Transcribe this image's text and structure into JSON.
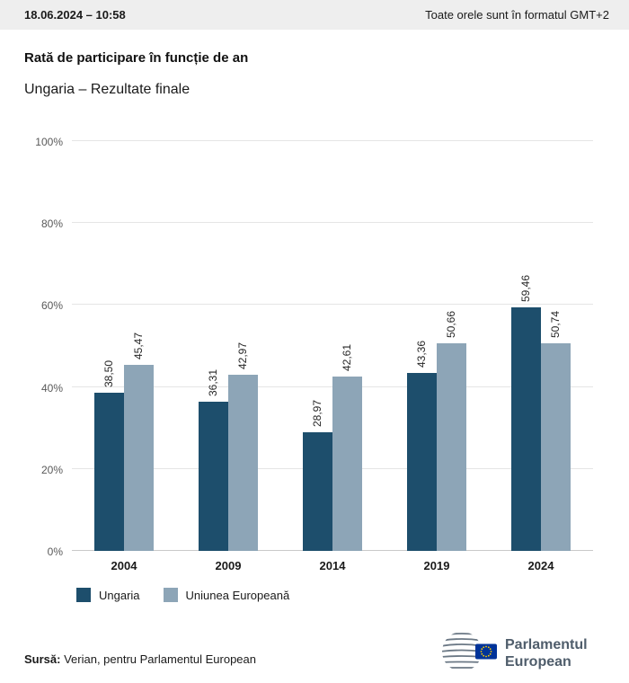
{
  "header": {
    "datetime": "18.06.2024 – 10:58",
    "timezone_note": "Toate orele sunt în formatul GMT+2"
  },
  "title": "Rată de participare în funcție de an",
  "subtitle": "Ungaria – Rezultate finale",
  "chart_data": {
    "type": "bar",
    "title": "Rată de participare în funcție de an",
    "subtitle": "Ungaria – Rezultate finale",
    "categories": [
      "2004",
      "2009",
      "2014",
      "2019",
      "2024"
    ],
    "series": [
      {
        "name": "Ungaria",
        "color": "#1d4e6c",
        "values": [
          38.5,
          36.31,
          28.97,
          43.36,
          59.46
        ],
        "labels": [
          "38,50",
          "36,31",
          "28,97",
          "43,36",
          "59,46"
        ]
      },
      {
        "name": "Uniunea Europeană",
        "color": "#8da5b7",
        "values": [
          45.47,
          42.97,
          42.61,
          50.66,
          50.74
        ],
        "labels": [
          "45,47",
          "42,97",
          "42,61",
          "50,66",
          "50,74"
        ]
      }
    ],
    "ylim": [
      0,
      100
    ],
    "yticks": [
      "0%",
      "20%",
      "40%",
      "60%",
      "80%",
      "100%"
    ],
    "grid": true,
    "legend_position": "bottom"
  },
  "footer": {
    "source_label": "Sursă:",
    "source_text": " Verian, pentru Parlamentul European"
  },
  "logo": {
    "line1": "Parlamentul",
    "line2": "European",
    "text_color": "#4f5d6b",
    "flag_blue": "#003399",
    "star_yellow": "#ffcc00"
  }
}
